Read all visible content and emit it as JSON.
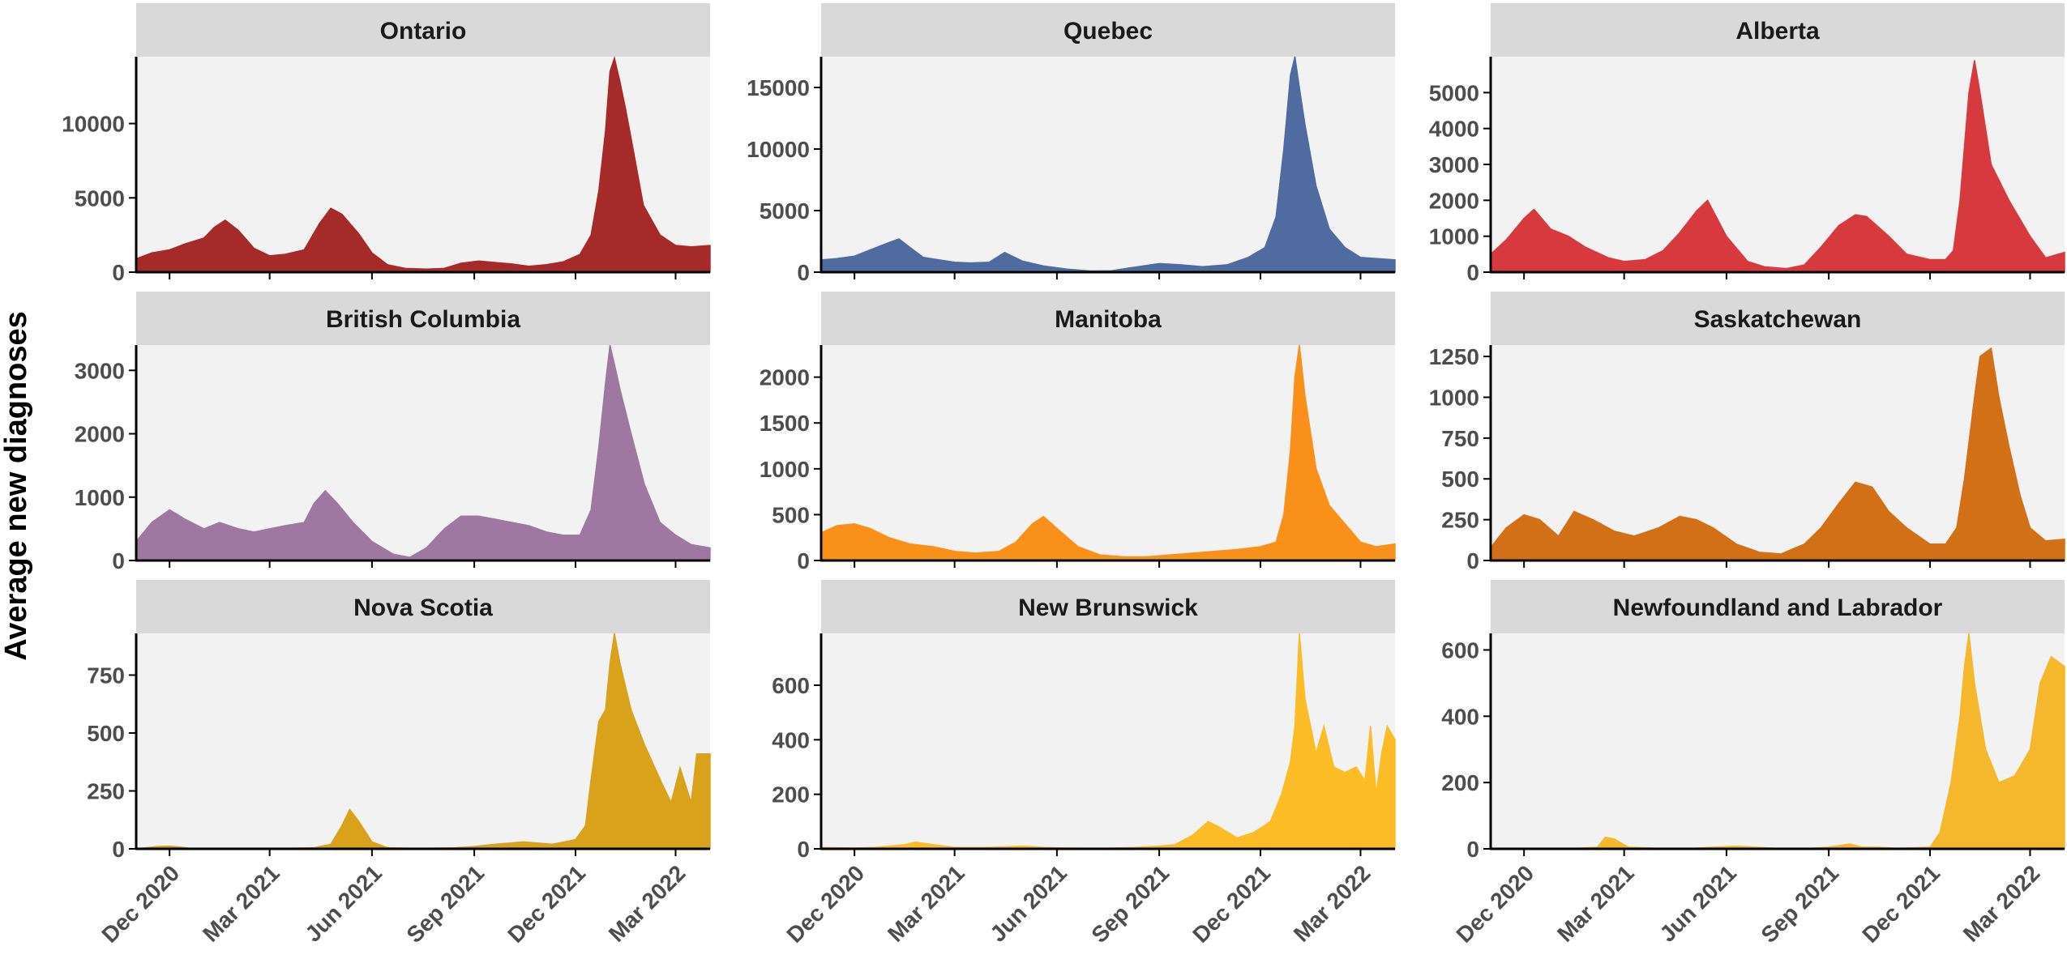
{
  "figure": {
    "ylabel": "Average new diagnoses",
    "x_ticks": [
      "Dec 2020",
      "Mar 2021",
      "Jun 2021",
      "Sep 2021",
      "Dec 2021",
      "Mar 2022"
    ],
    "x_tick_dates": [
      "2020-12-01",
      "2021-03-01",
      "2021-06-01",
      "2021-09-01",
      "2021-12-01",
      "2022-03-01"
    ],
    "x_range": [
      "2020-11-01",
      "2022-04-01"
    ],
    "grid": false,
    "colors": {
      "panel_bg": "#f2f2f2",
      "strip_bg": "#d9d9d9",
      "axis": "#000000"
    }
  },
  "chart_data": [
    {
      "type": "area",
      "title": "Ontario",
      "color": "#a52a2a",
      "ylim": [
        0,
        14500
      ],
      "y_ticks": [
        0,
        5000,
        10000
      ],
      "x": [
        "2020-11-01",
        "2020-11-15",
        "2020-12-01",
        "2020-12-15",
        "2021-01-01",
        "2021-01-10",
        "2021-01-20",
        "2021-02-01",
        "2021-02-15",
        "2021-03-01",
        "2021-03-15",
        "2021-04-01",
        "2021-04-15",
        "2021-04-25",
        "2021-05-05",
        "2021-05-20",
        "2021-06-01",
        "2021-06-15",
        "2021-07-01",
        "2021-07-20",
        "2021-08-05",
        "2021-08-20",
        "2021-09-05",
        "2021-09-20",
        "2021-10-05",
        "2021-10-20",
        "2021-11-05",
        "2021-11-20",
        "2021-12-05",
        "2021-12-15",
        "2021-12-22",
        "2021-12-28",
        "2022-01-01",
        "2022-01-05",
        "2022-01-10",
        "2022-01-15",
        "2022-01-20",
        "2022-01-31",
        "2022-02-15",
        "2022-03-01",
        "2022-03-15",
        "2022-04-01"
      ],
      "y": [
        900,
        1300,
        1500,
        1900,
        2300,
        3000,
        3500,
        2800,
        1600,
        1100,
        1200,
        1500,
        3300,
        4300,
        3900,
        2600,
        1300,
        500,
        250,
        200,
        250,
        600,
        750,
        650,
        550,
        400,
        500,
        700,
        1200,
        2500,
        5500,
        9500,
        13500,
        14400,
        12800,
        11000,
        9000,
        4500,
        2500,
        1800,
        1700,
        1800
      ]
    },
    {
      "type": "area",
      "title": "Quebec",
      "color": "#4f6b9f",
      "ylim": [
        0,
        17500
      ],
      "y_ticks": [
        0,
        5000,
        10000,
        15000
      ],
      "x": [
        "2020-11-01",
        "2020-11-15",
        "2020-12-01",
        "2020-12-15",
        "2021-01-01",
        "2021-01-10",
        "2021-01-20",
        "2021-02-01",
        "2021-02-15",
        "2021-03-01",
        "2021-03-15",
        "2021-04-01",
        "2021-04-15",
        "2021-05-01",
        "2021-05-20",
        "2021-06-10",
        "2021-07-01",
        "2021-07-20",
        "2021-08-10",
        "2021-09-01",
        "2021-09-20",
        "2021-10-10",
        "2021-11-01",
        "2021-11-20",
        "2021-12-05",
        "2021-12-15",
        "2021-12-22",
        "2021-12-28",
        "2022-01-01",
        "2022-01-05",
        "2022-01-10",
        "2022-01-20",
        "2022-02-01",
        "2022-02-15",
        "2022-03-01",
        "2022-04-01"
      ],
      "y": [
        1000,
        1100,
        1300,
        1800,
        2400,
        2700,
        2000,
        1200,
        1000,
        800,
        750,
        800,
        1600,
        900,
        500,
        250,
        100,
        120,
        400,
        700,
        600,
        450,
        600,
        1200,
        2000,
        4500,
        10000,
        16000,
        17500,
        15000,
        12000,
        7000,
        3500,
        2000,
        1200,
        1000
      ]
    },
    {
      "type": "area",
      "title": "Alberta",
      "color": "#d63a3f",
      "ylim": [
        0,
        6000
      ],
      "y_ticks": [
        0,
        1000,
        2000,
        3000,
        4000,
        5000
      ],
      "x": [
        "2020-11-01",
        "2020-11-15",
        "2020-12-01",
        "2020-12-10",
        "2020-12-25",
        "2021-01-10",
        "2021-01-25",
        "2021-02-15",
        "2021-03-01",
        "2021-03-20",
        "2021-04-05",
        "2021-04-20",
        "2021-05-05",
        "2021-05-15",
        "2021-06-01",
        "2021-06-20",
        "2021-07-05",
        "2021-07-25",
        "2021-08-10",
        "2021-08-25",
        "2021-09-10",
        "2021-09-25",
        "2021-10-05",
        "2021-10-25",
        "2021-11-10",
        "2021-12-01",
        "2021-12-15",
        "2021-12-22",
        "2021-12-28",
        "2022-01-01",
        "2022-01-05",
        "2022-01-10",
        "2022-01-15",
        "2022-01-25",
        "2022-02-10",
        "2022-03-01",
        "2022-03-15",
        "2022-04-01"
      ],
      "y": [
        500,
        900,
        1500,
        1750,
        1200,
        1000,
        700,
        400,
        300,
        350,
        600,
        1100,
        1700,
        2000,
        1000,
        300,
        150,
        100,
        200,
        700,
        1300,
        1600,
        1550,
        1000,
        500,
        350,
        350,
        600,
        2000,
        3500,
        5000,
        5900,
        5000,
        3000,
        2000,
        1000,
        400,
        550
      ]
    },
    {
      "type": "area",
      "title": "British Columbia",
      "color": "#9e78a0",
      "ylim": [
        0,
        3400
      ],
      "y_ticks": [
        0,
        1000,
        2000,
        3000
      ],
      "x": [
        "2020-11-01",
        "2020-11-15",
        "2020-12-01",
        "2020-12-15",
        "2021-01-01",
        "2021-01-15",
        "2021-02-01",
        "2021-02-15",
        "2021-03-01",
        "2021-03-15",
        "2021-04-01",
        "2021-04-10",
        "2021-04-20",
        "2021-05-01",
        "2021-05-15",
        "2021-06-01",
        "2021-06-20",
        "2021-07-05",
        "2021-07-20",
        "2021-08-05",
        "2021-08-20",
        "2021-09-05",
        "2021-09-20",
        "2021-10-05",
        "2021-10-20",
        "2021-11-05",
        "2021-11-20",
        "2021-12-05",
        "2021-12-15",
        "2021-12-22",
        "2021-12-28",
        "2022-01-01",
        "2022-01-05",
        "2022-01-10",
        "2022-01-20",
        "2022-02-01",
        "2022-02-15",
        "2022-03-01",
        "2022-03-15",
        "2022-04-01"
      ],
      "y": [
        300,
        600,
        800,
        650,
        500,
        600,
        500,
        450,
        500,
        550,
        600,
        900,
        1100,
        900,
        600,
        300,
        100,
        50,
        200,
        500,
        700,
        700,
        650,
        600,
        550,
        450,
        400,
        400,
        800,
        1800,
        2800,
        3400,
        3100,
        2700,
        2000,
        1200,
        600,
        400,
        250,
        200
      ]
    },
    {
      "type": "area",
      "title": "Manitoba",
      "color": "#f8901a",
      "ylim": [
        0,
        2350
      ],
      "y_ticks": [
        0,
        500,
        1000,
        1500,
        2000
      ],
      "x": [
        "2020-11-01",
        "2020-11-15",
        "2020-12-01",
        "2020-12-15",
        "2021-01-01",
        "2021-01-20",
        "2021-02-10",
        "2021-03-01",
        "2021-03-20",
        "2021-04-10",
        "2021-04-25",
        "2021-05-10",
        "2021-05-20",
        "2021-06-01",
        "2021-06-20",
        "2021-07-10",
        "2021-08-01",
        "2021-08-20",
        "2021-09-10",
        "2021-10-01",
        "2021-10-20",
        "2021-11-10",
        "2021-12-01",
        "2021-12-15",
        "2021-12-22",
        "2021-12-28",
        "2022-01-01",
        "2022-01-05",
        "2022-01-10",
        "2022-01-20",
        "2022-02-01",
        "2022-02-15",
        "2022-03-01",
        "2022-03-15",
        "2022-04-01"
      ],
      "y": [
        300,
        380,
        400,
        350,
        250,
        180,
        150,
        100,
        80,
        100,
        200,
        400,
        480,
        350,
        150,
        60,
        40,
        40,
        60,
        80,
        100,
        120,
        150,
        200,
        500,
        1200,
        2000,
        2350,
        1800,
        1000,
        600,
        400,
        200,
        150,
        180
      ]
    },
    {
      "type": "area",
      "title": "Saskatchewan",
      "color": "#d27018",
      "ylim": [
        0,
        1320
      ],
      "y_ticks": [
        0,
        250,
        500,
        750,
        1000,
        1250
      ],
      "x": [
        "2020-11-01",
        "2020-11-15",
        "2020-12-01",
        "2020-12-15",
        "2021-01-01",
        "2021-01-15",
        "2021-02-01",
        "2021-02-20",
        "2021-03-10",
        "2021-04-01",
        "2021-04-20",
        "2021-05-05",
        "2021-05-20",
        "2021-06-10",
        "2021-07-01",
        "2021-07-20",
        "2021-08-10",
        "2021-08-25",
        "2021-09-10",
        "2021-09-25",
        "2021-10-10",
        "2021-10-25",
        "2021-11-10",
        "2021-12-01",
        "2021-12-15",
        "2021-12-25",
        "2022-01-01",
        "2022-01-10",
        "2022-01-15",
        "2022-01-25",
        "2022-02-01",
        "2022-02-10",
        "2022-02-20",
        "2022-03-01",
        "2022-03-15",
        "2022-04-01"
      ],
      "y": [
        80,
        200,
        280,
        250,
        150,
        300,
        250,
        180,
        150,
        200,
        270,
        250,
        200,
        100,
        50,
        40,
        100,
        200,
        350,
        480,
        450,
        300,
        200,
        100,
        100,
        200,
        500,
        1000,
        1250,
        1300,
        1000,
        700,
        400,
        200,
        120,
        130
      ]
    },
    {
      "type": "area",
      "title": "Nova Scotia",
      "color": "#d9a21b",
      "ylim": [
        0,
        930
      ],
      "y_ticks": [
        0,
        250,
        500,
        750
      ],
      "x": [
        "2020-11-01",
        "2020-11-20",
        "2020-12-01",
        "2020-12-10",
        "2020-12-20",
        "2021-01-10",
        "2021-02-10",
        "2021-03-10",
        "2021-04-10",
        "2021-04-25",
        "2021-05-05",
        "2021-05-12",
        "2021-05-20",
        "2021-06-01",
        "2021-06-15",
        "2021-07-15",
        "2021-08-15",
        "2021-09-01",
        "2021-09-20",
        "2021-10-15",
        "2021-11-10",
        "2021-12-01",
        "2021-12-10",
        "2021-12-15",
        "2021-12-22",
        "2021-12-28",
        "2022-01-01",
        "2022-01-05",
        "2022-01-10",
        "2022-01-20",
        "2022-02-01",
        "2022-02-15",
        "2022-02-25",
        "2022-03-05",
        "2022-03-15",
        "2022-03-20",
        "2022-04-01"
      ],
      "y": [
        0,
        10,
        12,
        8,
        2,
        2,
        2,
        2,
        5,
        20,
        100,
        170,
        120,
        30,
        5,
        2,
        5,
        10,
        20,
        30,
        20,
        40,
        100,
        300,
        550,
        600,
        800,
        930,
        800,
        600,
        450,
        300,
        200,
        350,
        200,
        410,
        410
      ]
    },
    {
      "type": "area",
      "title": "New Brunswick",
      "color": "#fbbc25",
      "ylim": [
        0,
        790
      ],
      "y_ticks": [
        0,
        200,
        400,
        600
      ],
      "x": [
        "2020-11-01",
        "2020-12-01",
        "2020-12-20",
        "2021-01-15",
        "2021-01-25",
        "2021-02-10",
        "2021-03-01",
        "2021-04-01",
        "2021-05-01",
        "2021-05-20",
        "2021-06-10",
        "2021-07-10",
        "2021-08-10",
        "2021-09-01",
        "2021-09-15",
        "2021-10-01",
        "2021-10-15",
        "2021-10-25",
        "2021-11-10",
        "2021-11-25",
        "2021-12-10",
        "2021-12-20",
        "2021-12-28",
        "2022-01-01",
        "2022-01-05",
        "2022-01-10",
        "2022-01-20",
        "2022-01-27",
        "2022-02-05",
        "2022-02-15",
        "2022-02-25",
        "2022-03-05",
        "2022-03-10",
        "2022-03-15",
        "2022-03-20",
        "2022-03-25",
        "2022-04-01"
      ],
      "y": [
        5,
        3,
        5,
        15,
        25,
        15,
        5,
        5,
        10,
        5,
        3,
        2,
        5,
        10,
        15,
        50,
        100,
        80,
        40,
        60,
        100,
        200,
        320,
        450,
        790,
        550,
        350,
        450,
        300,
        280,
        300,
        250,
        450,
        200,
        350,
        450,
        400
      ]
    },
    {
      "type": "area",
      "title": "Newfoundland and Labrador",
      "color": "#f5b82d",
      "ylim": [
        0,
        650
      ],
      "y_ticks": [
        0,
        200,
        400,
        600
      ],
      "x": [
        "2020-11-01",
        "2020-12-01",
        "2021-01-15",
        "2021-02-05",
        "2021-02-12",
        "2021-02-20",
        "2021-03-05",
        "2021-04-01",
        "2021-05-01",
        "2021-05-20",
        "2021-06-10",
        "2021-07-15",
        "2021-08-15",
        "2021-09-01",
        "2021-09-20",
        "2021-10-01",
        "2021-10-15",
        "2021-11-01",
        "2021-12-01",
        "2021-12-10",
        "2021-12-20",
        "2021-12-28",
        "2022-01-01",
        "2022-01-05",
        "2022-01-10",
        "2022-01-20",
        "2022-02-01",
        "2022-02-15",
        "2022-03-01",
        "2022-03-10",
        "2022-03-20",
        "2022-04-01"
      ],
      "y": [
        0,
        2,
        2,
        5,
        35,
        30,
        5,
        2,
        2,
        5,
        8,
        2,
        2,
        5,
        15,
        5,
        5,
        2,
        5,
        50,
        200,
        400,
        550,
        650,
        500,
        300,
        200,
        220,
        300,
        500,
        580,
        550
      ]
    }
  ]
}
